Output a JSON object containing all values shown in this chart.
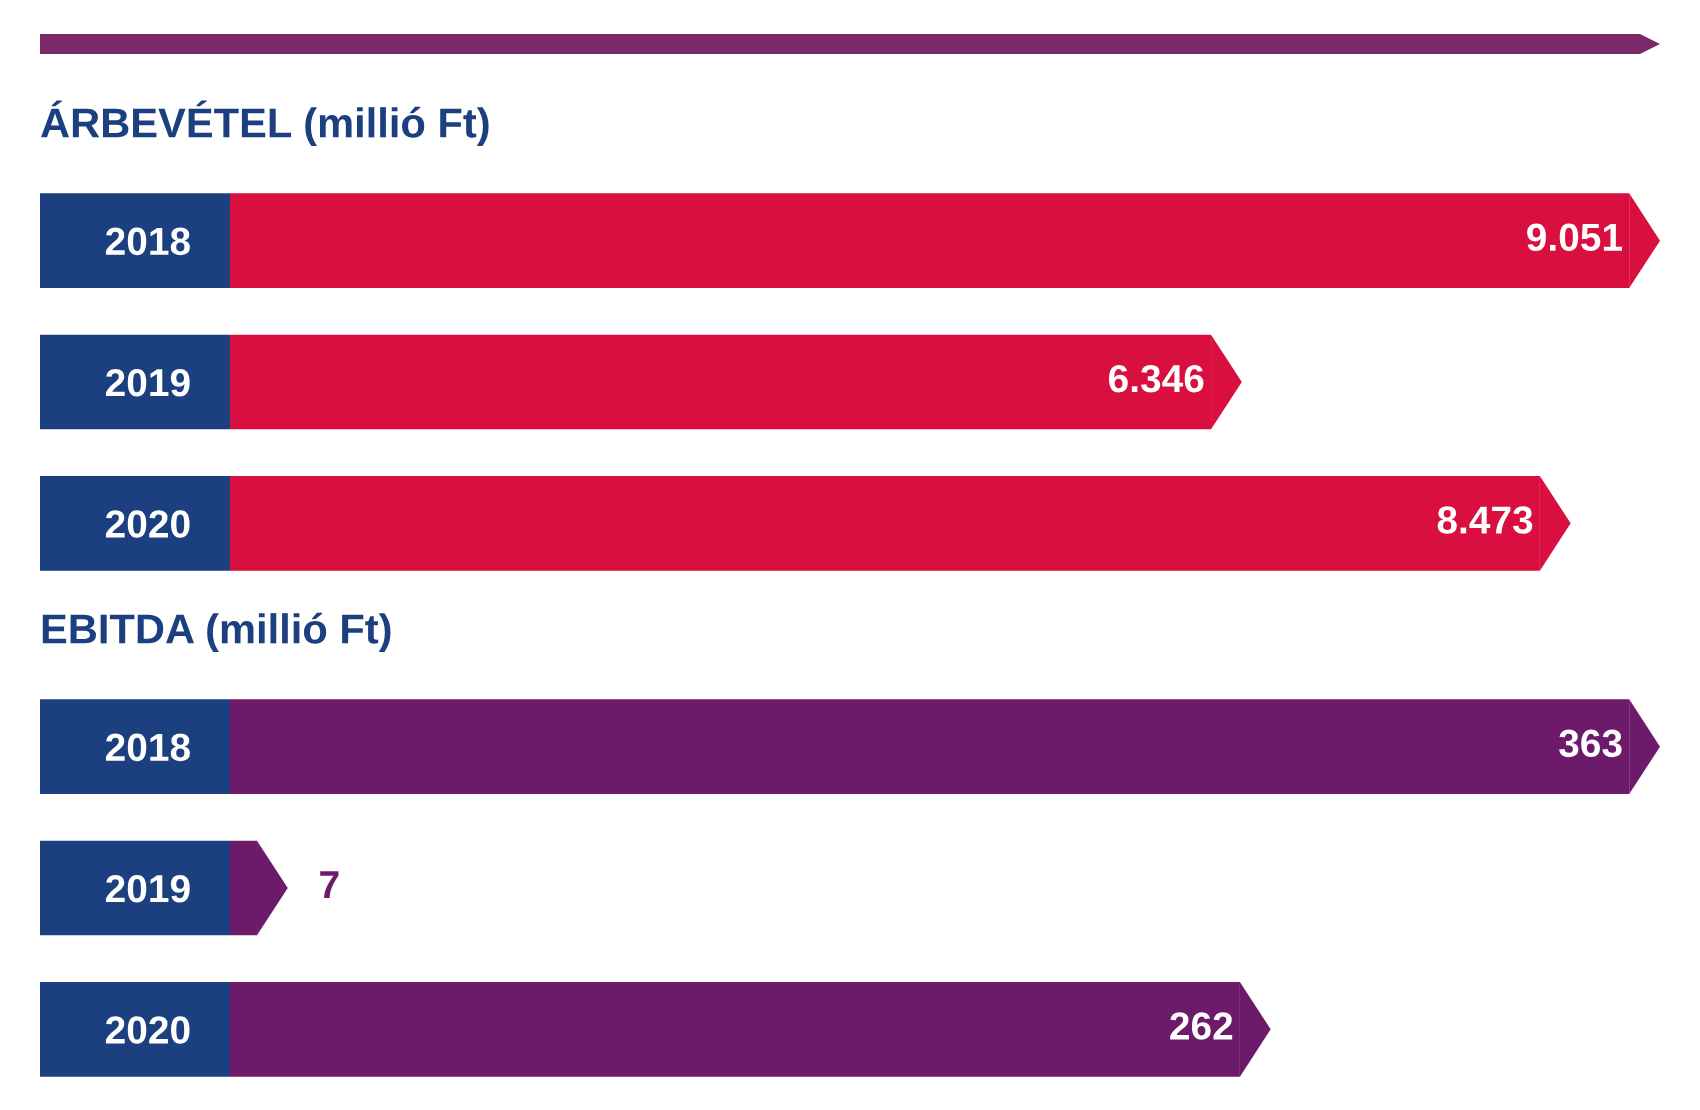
{
  "chart_data": [
    {
      "type": "bar",
      "orientation": "horizontal",
      "title": "ÁRBEVÉTEL (millió Ft)",
      "categories": [
        "2018",
        "2019",
        "2020"
      ],
      "values": [
        9051,
        6346,
        8473
      ],
      "value_labels": [
        "9.051",
        "6.346",
        "8.473"
      ],
      "color": "#d90f3f"
    },
    {
      "type": "bar",
      "orientation": "horizontal",
      "title": "EBITDA (millió Ft)",
      "categories": [
        "2018",
        "2019",
        "2020"
      ],
      "values": [
        363,
        7,
        262
      ],
      "value_labels": [
        "363",
        "7",
        "262"
      ],
      "color": "#6e1a6a"
    }
  ]
}
